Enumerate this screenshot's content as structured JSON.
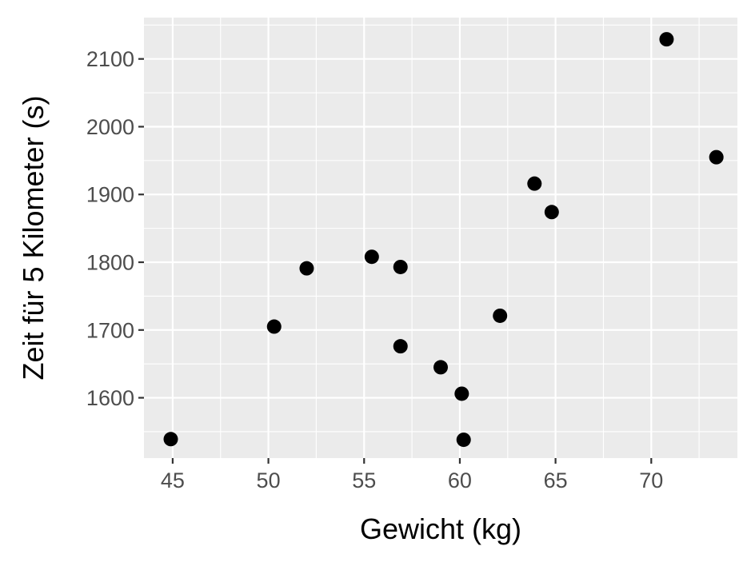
{
  "chart_data": {
    "type": "scatter",
    "title": "",
    "xlabel": "Gewicht (kg)",
    "ylabel": "Zeit für 5 Kilometer (s)",
    "xlim": [
      43.5,
      74.5
    ],
    "ylim": [
      1511,
      2161
    ],
    "x_ticks": [
      45,
      50,
      55,
      60,
      65,
      70
    ],
    "y_ticks": [
      1600,
      1700,
      1800,
      1900,
      2000,
      2100
    ],
    "grid": true,
    "legend": "none",
    "colors": {
      "panel": "#ebebeb",
      "grid": "#ffffff",
      "point": "#000000",
      "tick": "#333333"
    },
    "x": [
      44.9,
      50.3,
      52.0,
      55.4,
      56.9,
      56.9,
      59.0,
      60.1,
      60.2,
      62.1,
      63.9,
      64.8,
      70.8,
      73.4
    ],
    "y": [
      1539,
      1705,
      1791,
      1808,
      1793,
      1676,
      1645,
      1606,
      1538,
      1721,
      1916,
      1874,
      2129,
      1955
    ]
  }
}
